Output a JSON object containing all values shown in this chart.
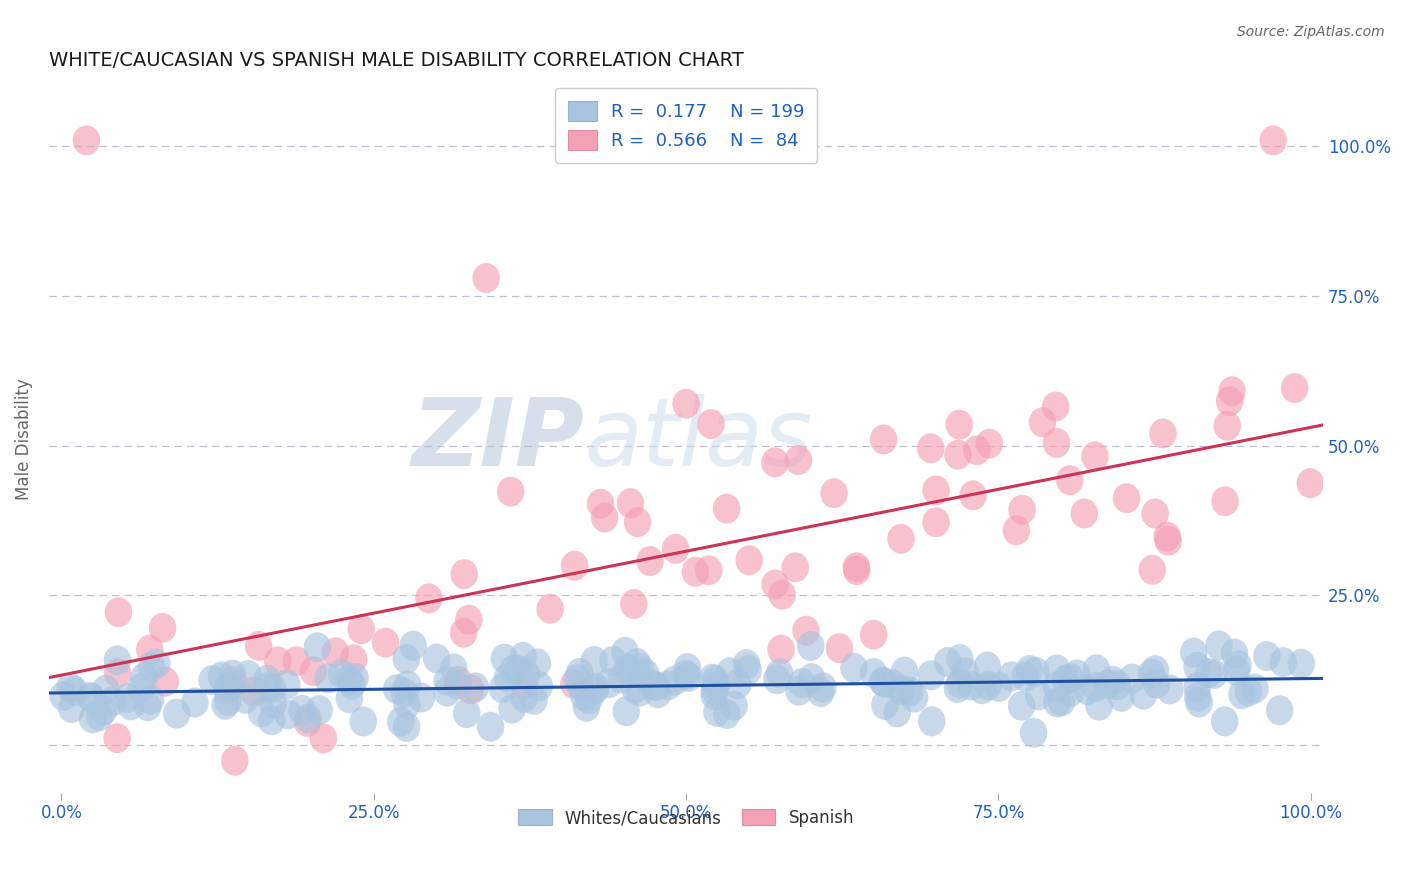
{
  "title": "WHITE/CAUCASIAN VS SPANISH MALE DISABILITY CORRELATION CHART",
  "source": "Source: ZipAtlas.com",
  "ylabel": "Male Disability",
  "xlim": [
    0.0,
    1.0
  ],
  "ylim": [
    -0.08,
    1.1
  ],
  "x_ticks": [
    0.0,
    0.25,
    0.5,
    0.75,
    1.0
  ],
  "x_tick_labels": [
    "0.0%",
    "25.0%",
    "50.0%",
    "75.0%",
    "100.0%"
  ],
  "y_tick_positions": [
    0.0,
    0.25,
    0.5,
    0.75,
    1.0
  ],
  "y_tick_labels": [
    "",
    "25.0%",
    "50.0%",
    "75.0%",
    "100.0%"
  ],
  "white_R": 0.177,
  "white_N": 199,
  "spanish_R": 0.566,
  "spanish_N": 84,
  "white_color": "#a8c4e0",
  "spanish_color": "#f4a0b5",
  "white_line_color": "#2050a0",
  "spanish_line_color": "#cc3355",
  "legend_text_color": "#2060c0",
  "background_color": "#ffffff",
  "grid_color": "#c0c0d0",
  "watermark_zip": "ZIP",
  "watermark_atlas": "atlas",
  "seed": 7
}
